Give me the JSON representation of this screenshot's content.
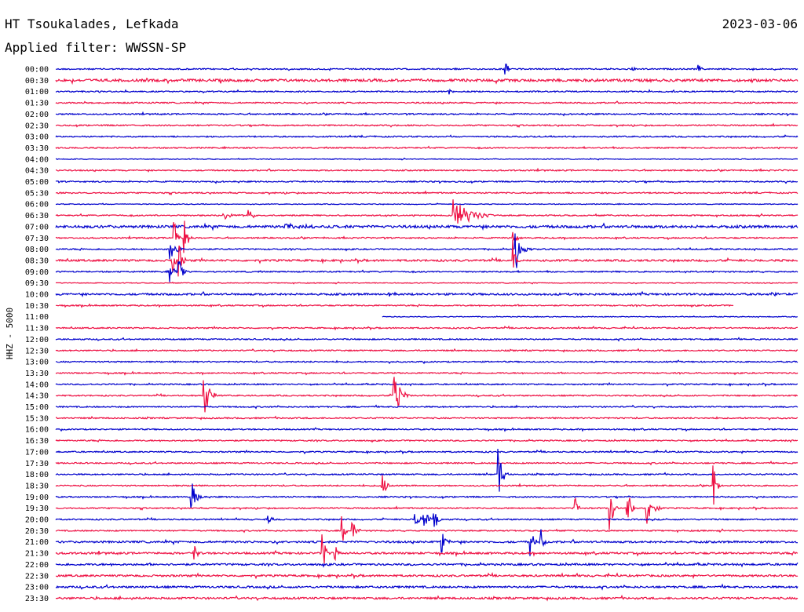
{
  "header": {
    "station": "HT Tsoukalades, Lefkada",
    "date": "2023-03-06",
    "filter": "Applied filter: WWSSN-SP"
  },
  "y_axis_label": "HHZ - 5000",
  "colors": {
    "even": "#0000cc",
    "odd": "#ee1144",
    "text": "#000000"
  },
  "chart_data": {
    "type": "line",
    "title": "",
    "xlabel": "",
    "ylabel": "HHZ - 5000",
    "row_minutes": 30,
    "x_range_minutes": [
      0,
      30
    ],
    "grid": false,
    "legend": "none",
    "row_labels": [
      "00:00",
      "00:30",
      "01:00",
      "01:30",
      "02:00",
      "02:30",
      "03:00",
      "03:30",
      "04:00",
      "04:30",
      "05:00",
      "05:30",
      "06:00",
      "06:30",
      "07:00",
      "07:30",
      "08:00",
      "08:30",
      "09:00",
      "09:30",
      "10:00",
      "10:30",
      "11:00",
      "11:30",
      "12:00",
      "12:30",
      "13:00",
      "13:30",
      "14:00",
      "14:30",
      "15:00",
      "15:30",
      "16:00",
      "16:30",
      "17:00",
      "17:30",
      "18:00",
      "18:30",
      "19:00",
      "19:30",
      "20:00",
      "20:30",
      "21:00",
      "21:30",
      "22:00",
      "22:30",
      "23:00",
      "23:30"
    ],
    "noise_level": [
      1,
      2,
      1,
      1,
      1,
      1,
      1,
      1,
      0.6,
      1,
      1,
      1,
      0.6,
      1,
      2,
      1,
      1,
      1.5,
      1,
      0.6,
      1.5,
      1,
      0.6,
      1,
      1,
      1,
      1,
      1,
      1,
      1,
      1,
      1,
      1,
      1,
      1,
      1,
      1,
      1,
      1,
      1,
      1,
      1,
      1.5,
      1.5,
      1.5,
      1.5,
      1.5,
      1.5
    ],
    "trace_extent": [
      {
        "row": 21,
        "end_minute": 27.4
      },
      {
        "row": 22,
        "start_minute": 13.2
      }
    ],
    "events": [
      {
        "row": 0,
        "minute": 18.2,
        "amplitude": 8,
        "duration": 0.3
      },
      {
        "row": 0,
        "minute": 23.3,
        "amplitude": 6,
        "duration": 0.2
      },
      {
        "row": 0,
        "minute": 26.0,
        "amplitude": 6,
        "duration": 0.2
      },
      {
        "row": 2,
        "minute": 15.9,
        "amplitude": 4,
        "duration": 0.3
      },
      {
        "row": 13,
        "minute": 6.8,
        "amplitude": 5,
        "duration": 1.0
      },
      {
        "row": 13,
        "minute": 7.8,
        "amplitude": 15,
        "duration": 0.3
      },
      {
        "row": 13,
        "minute": 16.1,
        "amplitude": 22,
        "duration": 1.6
      },
      {
        "row": 14,
        "minute": 9.3,
        "amplitude": 4,
        "duration": 1.8
      },
      {
        "row": 15,
        "minute": 4.8,
        "amplitude": 22,
        "duration": 0.3
      },
      {
        "row": 15,
        "minute": 5.2,
        "amplitude": 28,
        "duration": 0.3
      },
      {
        "row": 15,
        "minute": 18.5,
        "amplitude": 20,
        "duration": 0.3
      },
      {
        "row": 16,
        "minute": 4.6,
        "amplitude": 16,
        "duration": 0.6
      },
      {
        "row": 16,
        "minute": 18.6,
        "amplitude": 36,
        "duration": 0.3
      },
      {
        "row": 16,
        "minute": 19.0,
        "amplitude": 5,
        "duration": 0.4
      },
      {
        "row": 17,
        "minute": 4.7,
        "amplitude": 22,
        "duration": 0.3
      },
      {
        "row": 17,
        "minute": 5.0,
        "amplitude": 25,
        "duration": 0.3
      },
      {
        "row": 17,
        "minute": 18.5,
        "amplitude": 28,
        "duration": 0.3
      },
      {
        "row": 18,
        "minute": 4.6,
        "amplitude": 22,
        "duration": 0.3
      },
      {
        "row": 18,
        "minute": 5.0,
        "amplitude": 18,
        "duration": 0.3
      },
      {
        "row": 20,
        "minute": 13.5,
        "amplitude": 3,
        "duration": 0.8
      },
      {
        "row": 20,
        "minute": 29.0,
        "amplitude": 3,
        "duration": 0.5
      },
      {
        "row": 29,
        "minute": 6.0,
        "amplitude": 30,
        "duration": 0.5
      },
      {
        "row": 29,
        "minute": 13.7,
        "amplitude": 30,
        "duration": 0.6
      },
      {
        "row": 36,
        "minute": 17.9,
        "amplitude": 40,
        "duration": 0.4
      },
      {
        "row": 37,
        "minute": 13.2,
        "amplitude": 22,
        "duration": 0.3
      },
      {
        "row": 37,
        "minute": 26.6,
        "amplitude": 30,
        "duration": 0.3
      },
      {
        "row": 38,
        "minute": 5.5,
        "amplitude": 20,
        "duration": 0.5
      },
      {
        "row": 39,
        "minute": 21.0,
        "amplitude": 18,
        "duration": 0.3
      },
      {
        "row": 39,
        "minute": 22.4,
        "amplitude": 38,
        "duration": 0.3
      },
      {
        "row": 39,
        "minute": 23.1,
        "amplitude": 38,
        "duration": 0.3
      },
      {
        "row": 39,
        "minute": 23.9,
        "amplitude": 22,
        "duration": 0.6
      },
      {
        "row": 40,
        "minute": 14.5,
        "amplitude": 22,
        "duration": 0.3
      },
      {
        "row": 40,
        "minute": 14.9,
        "amplitude": 20,
        "duration": 0.3
      },
      {
        "row": 40,
        "minute": 15.3,
        "amplitude": 22,
        "duration": 0.3
      },
      {
        "row": 40,
        "minute": 8.6,
        "amplitude": 6,
        "duration": 0.3
      },
      {
        "row": 41,
        "minute": 11.6,
        "amplitude": 22,
        "duration": 0.3
      },
      {
        "row": 41,
        "minute": 12.0,
        "amplitude": 14,
        "duration": 0.4
      },
      {
        "row": 42,
        "minute": 15.6,
        "amplitude": 16,
        "duration": 0.4
      },
      {
        "row": 42,
        "minute": 19.2,
        "amplitude": 22,
        "duration": 0.3
      },
      {
        "row": 42,
        "minute": 19.6,
        "amplitude": 22,
        "duration": 0.3
      },
      {
        "row": 43,
        "minute": 5.6,
        "amplitude": 10,
        "duration": 0.3
      },
      {
        "row": 43,
        "minute": 10.8,
        "amplitude": 24,
        "duration": 0.3
      },
      {
        "row": 43,
        "minute": 11.3,
        "amplitude": 10,
        "duration": 0.3
      }
    ]
  }
}
